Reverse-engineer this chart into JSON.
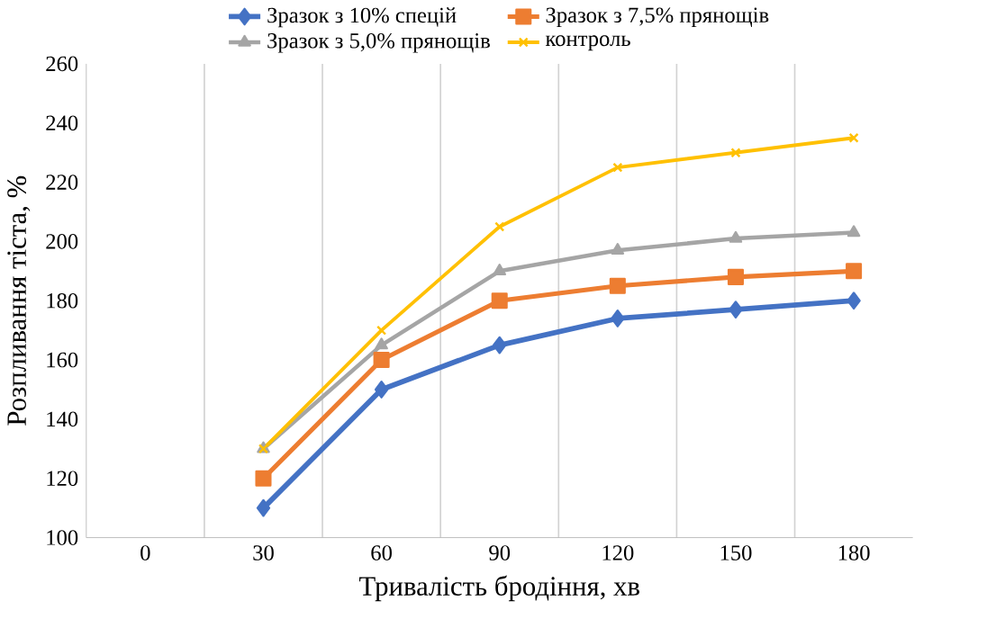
{
  "chart_data": {
    "type": "line",
    "xlabel": "Тривалість бродіння, хв",
    "ylabel": "Розпливання тіста, %",
    "categories": [
      "0",
      "30",
      "60",
      "90",
      "120",
      "150",
      "180"
    ],
    "series": [
      {
        "name": "Зразок з 10% спецій",
        "color": "#4472c4",
        "marker": "diamond",
        "values": [
          null,
          110,
          150,
          165,
          174,
          177,
          180
        ]
      },
      {
        "name": "Зразок з 7,5% прянощів",
        "color": "#ed7d31",
        "marker": "square",
        "values": [
          null,
          120,
          160,
          180,
          185,
          188,
          190
        ]
      },
      {
        "name": "Зразок з 5,0% прянощів",
        "color": "#a5a5a5",
        "marker": "triangle",
        "values": [
          null,
          130,
          165,
          190,
          197,
          201,
          203
        ]
      },
      {
        "name": "контроль",
        "color": "#ffc000",
        "marker": "cross",
        "values": [
          null,
          130,
          170,
          205,
          225,
          230,
          235
        ]
      }
    ],
    "ylim": [
      100,
      260
    ],
    "yticks": [
      100,
      120,
      140,
      160,
      180,
      200,
      220,
      240,
      260
    ],
    "grid": "x",
    "legend": "top"
  }
}
